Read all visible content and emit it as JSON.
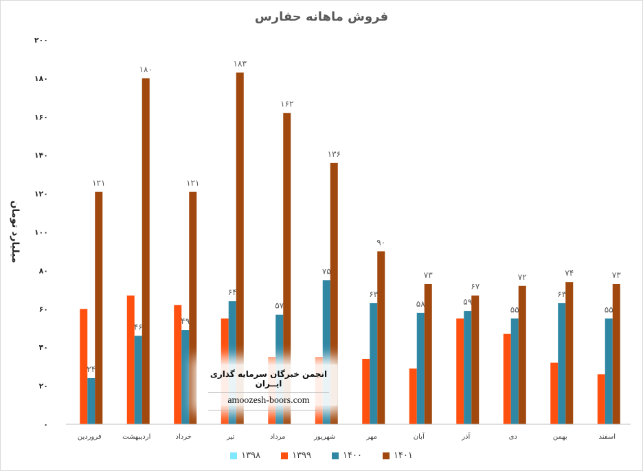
{
  "chart_data": {
    "type": "bar",
    "title": "فروش ماهانه حفارس",
    "ylabel": "میلیارد تومان",
    "xlabel": "",
    "ylim": [
      0,
      200
    ],
    "yticks": [
      "۰",
      "۲۰",
      "۴۰",
      "۶۰",
      "۸۰",
      "۱۰۰",
      "۱۲۰",
      "۱۴۰",
      "۱۶۰",
      "۱۸۰",
      "۲۰۰"
    ],
    "categories": [
      "فروردین",
      "اردیبهشت",
      "خرداد",
      "تیر",
      "مرداد",
      "شهریور",
      "مهر",
      "آبان",
      "آذر",
      "دی",
      "بهمن",
      "اسفند"
    ],
    "legend_position": "bottom",
    "grid": false,
    "series": [
      {
        "name": "۱۳۹۸",
        "color": "#7fe8ff",
        "values": [
          0,
          0,
          0,
          0,
          0,
          0,
          0,
          0,
          0,
          0,
          0,
          0
        ],
        "labels": null
      },
      {
        "name": "۱۳۹۹",
        "color": "#ff5010",
        "values": [
          60,
          67,
          62,
          55,
          35,
          35,
          34,
          29,
          55,
          47,
          32,
          26
        ],
        "labels": null
      },
      {
        "name": "۱۴۰۰",
        "color": "#2f87a4",
        "values": [
          24,
          46,
          49,
          64,
          57,
          75,
          63,
          58,
          59,
          55,
          63,
          55
        ],
        "labels": [
          "۲۴",
          "۴۶",
          "۴۹",
          "۶۴",
          "۵۷",
          "۷۵",
          "۶۳",
          "۵۸",
          "۵۹",
          "۵۵",
          "۶۳",
          "۵۵"
        ]
      },
      {
        "name": "۱۴۰۱",
        "color": "#a0480e",
        "values": [
          121,
          180,
          121,
          183,
          162,
          136,
          90,
          73,
          67,
          72,
          74,
          73
        ],
        "labels": [
          "۱۲۱",
          "۱۸۰",
          "۱۲۱",
          "۱۸۳",
          "۱۶۲",
          "۱۳۶",
          "۹۰",
          "۷۳",
          "۶۷",
          "۷۲",
          "۷۴",
          "۷۳"
        ]
      }
    ]
  },
  "watermark": {
    "title": "انجمن خبرگان سرمایه گذاری ایــران",
    "url": "amoozesh-boors.com"
  }
}
